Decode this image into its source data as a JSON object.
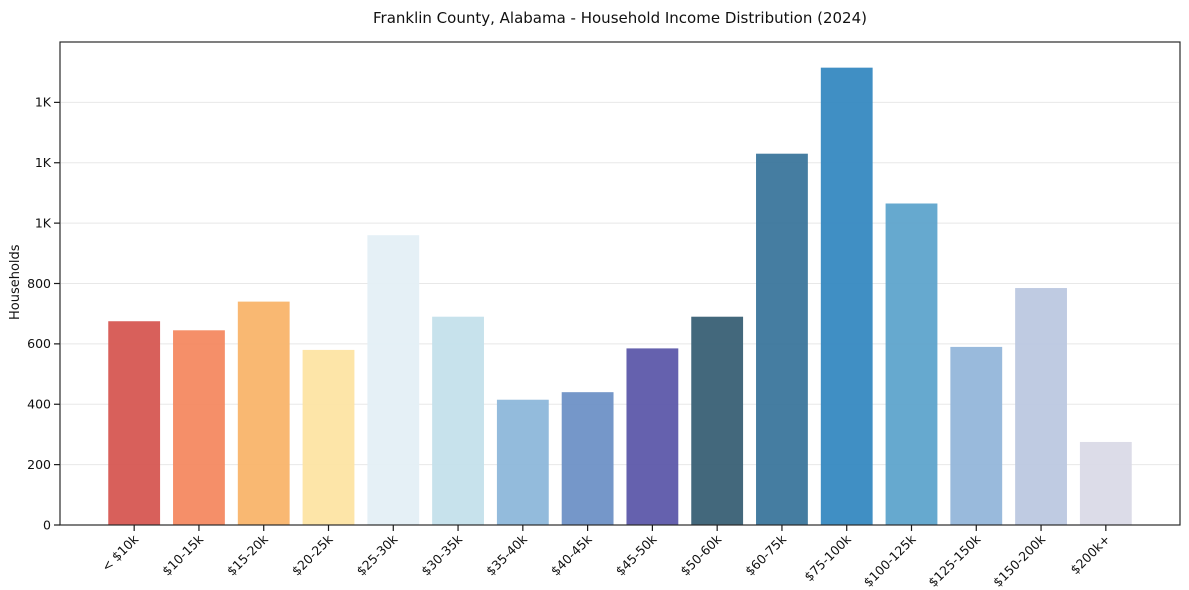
{
  "window": {
    "background": "#ffffff"
  },
  "chart_data": {
    "type": "bar",
    "title": "Franklin County, Alabama - Household Income Distribution (2024)",
    "xlabel": "",
    "ylabel": "Households",
    "categories": [
      "< $10k",
      "$10-15k",
      "$15-20k",
      "$20-25k",
      "$25-30k",
      "$30-35k",
      "$35-40k",
      "$40-45k",
      "$45-50k",
      "$50-60k",
      "$60-75k",
      "$75-100k",
      "$100-125k",
      "$125-150k",
      "$150-200k",
      "$200k+"
    ],
    "values": [
      675,
      645,
      740,
      580,
      960,
      690,
      415,
      440,
      585,
      690,
      1230,
      1515,
      1065,
      590,
      785,
      275
    ],
    "bar_colors": [
      "#d5544f",
      "#f4865e",
      "#f9b367",
      "#fde3a1",
      "#e3eff5",
      "#c3e0eb",
      "#8bb6d9",
      "#6b8fc5",
      "#5955a8",
      "#355d72",
      "#37739a",
      "#3287c0",
      "#5aa3cb",
      "#91b5d9",
      "#bac7e0",
      "#d9d9e6"
    ],
    "yticks": {
      "values": [
        0,
        200,
        400,
        600,
        800,
        1000,
        1200,
        1400
      ],
      "labels": [
        "0",
        "200",
        "400",
        "600",
        "800",
        "1K",
        "1K",
        "1K"
      ]
    },
    "ylim": [
      0,
      1600
    ],
    "grid": "horizontal",
    "grid_color": "#e8e8e8",
    "spine_color": "#2a2a2a",
    "tick_color": "#1a1a1a",
    "text_color": "#111111",
    "legend": "none",
    "x_tick_rotation": -45
  }
}
